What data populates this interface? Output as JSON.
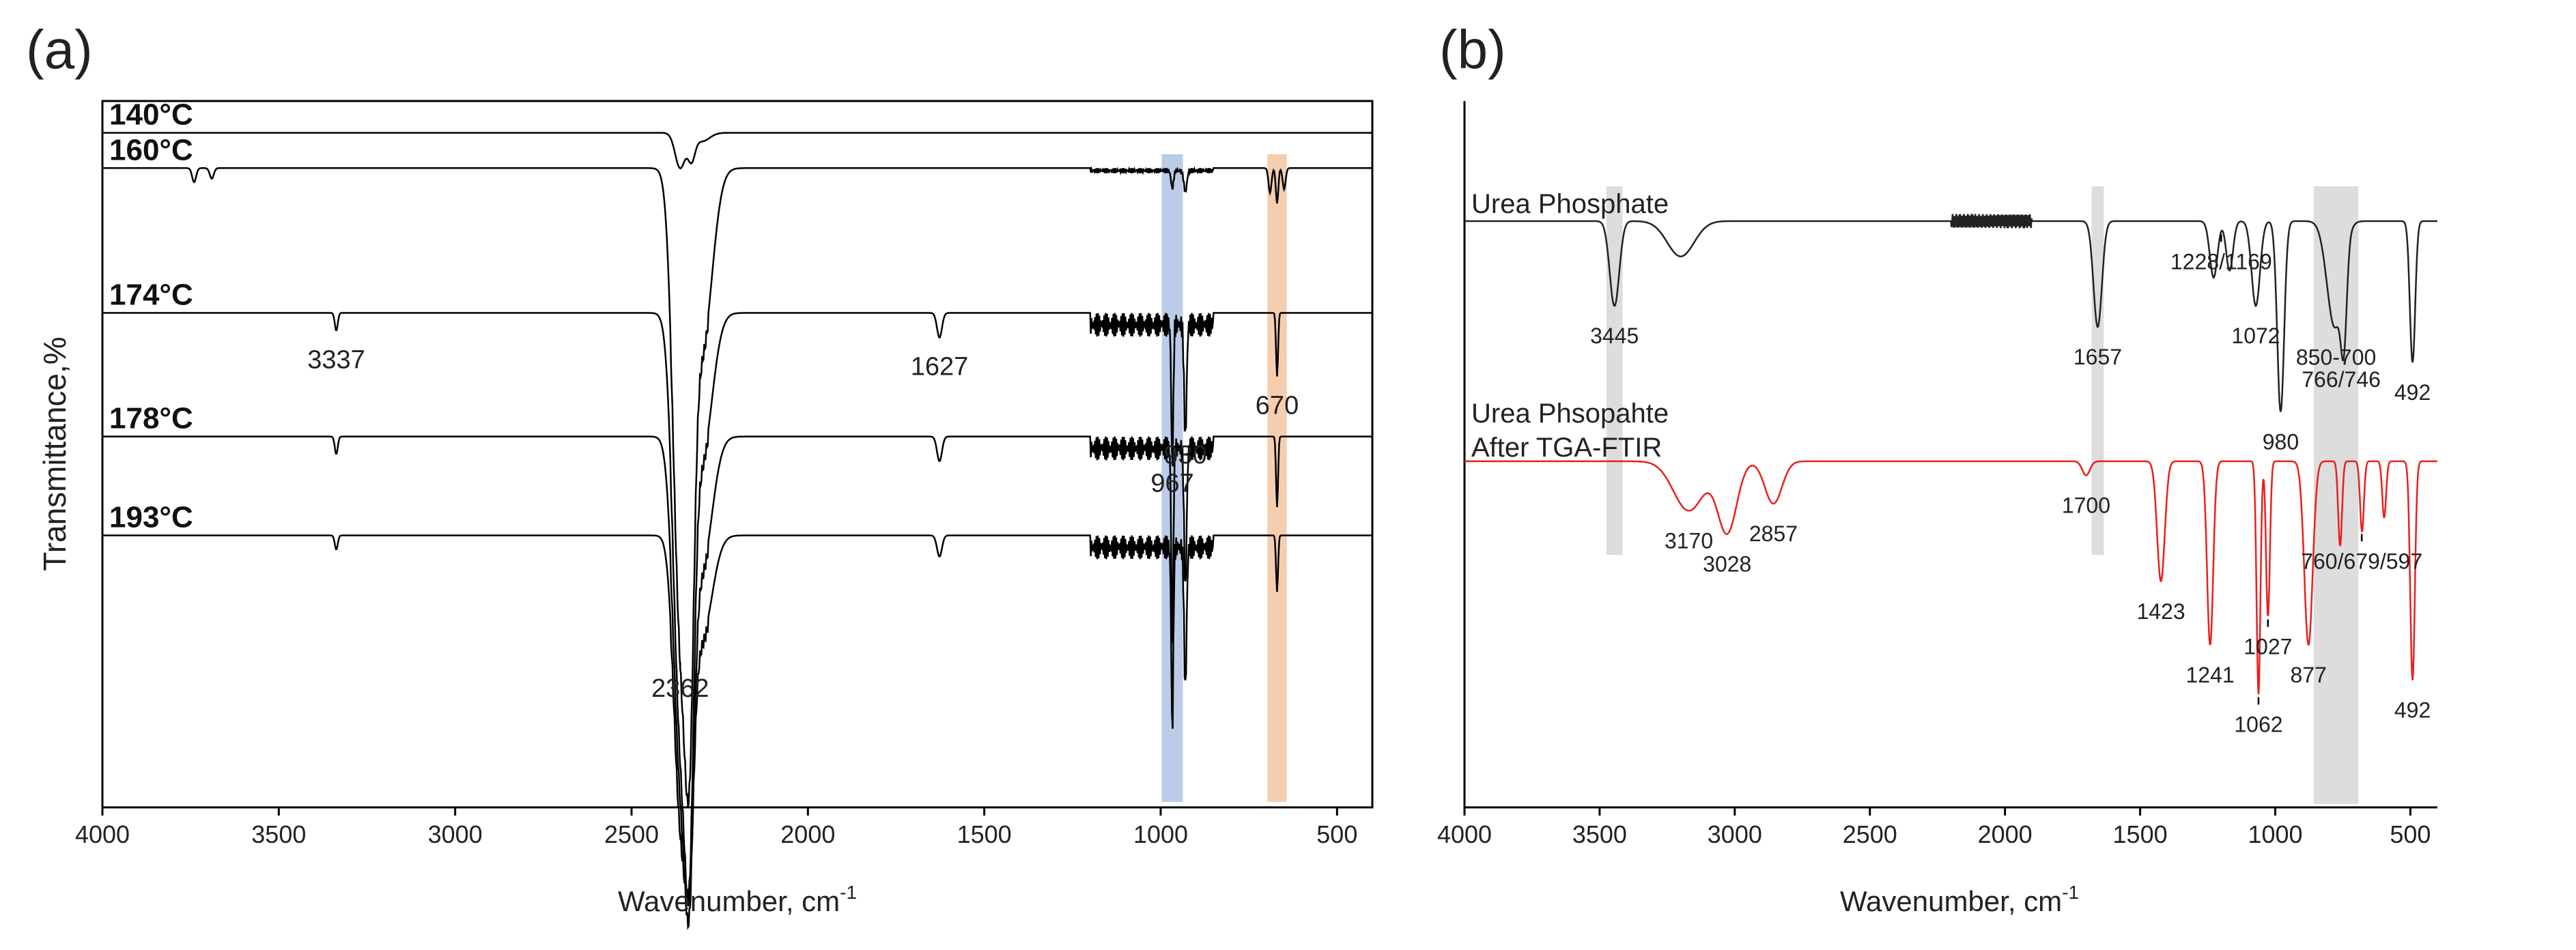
{
  "chart_data": [
    {
      "panel": "(a)",
      "type": "line",
      "xlabel": "Wavenumber, cm",
      "xlabel_superscript": "-1",
      "ylabel": "Transmittance,%",
      "xlim": [
        4000,
        400
      ],
      "xticks": [
        4000,
        3500,
        3000,
        2500,
        2000,
        1500,
        1000,
        500
      ],
      "highlight_bands": [
        {
          "center": 967,
          "width": 60,
          "color": "#b4c6e7"
        },
        {
          "center": 670,
          "width": 55,
          "color": "#f4c9a6"
        }
      ],
      "series": [
        {
          "name": "140°C",
          "baseline": 0.955,
          "color": "#000000",
          "peaks": [
            [
              2362,
              0.05,
              20
            ],
            [
              2330,
              0.035,
              14
            ],
            [
              2300,
              0.012,
              30
            ]
          ]
        },
        {
          "name": "160°C",
          "baseline": 0.905,
          "color": "#000000",
          "peaks": [
            [
              2362,
              0.62,
              28
            ],
            [
              2335,
              0.5,
              18
            ],
            [
              2300,
              0.25,
              40
            ],
            [
              3740,
              0.02,
              8
            ],
            [
              3690,
              0.015,
              8
            ],
            [
              967,
              0.025,
              5
            ],
            [
              930,
              0.03,
              6
            ],
            [
              690,
              0.035,
              6
            ],
            [
              670,
              0.05,
              5
            ],
            [
              650,
              0.03,
              6
            ]
          ]
        },
        {
          "name": "174°C",
          "baseline": 0.7,
          "color": "#000000",
          "peaks": [
            [
              2362,
              0.56,
              28
            ],
            [
              2335,
              0.48,
              18
            ],
            [
              2300,
              0.2,
              40
            ],
            [
              3337,
              0.025,
              6
            ],
            [
              1627,
              0.035,
              10
            ],
            [
              967,
              0.2,
              4
            ],
            [
              930,
              0.16,
              5
            ],
            [
              670,
              0.09,
              4
            ]
          ]
        },
        {
          "name": "178°C",
          "baseline": 0.525,
          "color": "#000000",
          "peaks": [
            [
              2362,
              0.45,
              28
            ],
            [
              2335,
              0.4,
              18
            ],
            [
              2300,
              0.18,
              40
            ],
            [
              3337,
              0.025,
              6
            ],
            [
              1627,
              0.035,
              10
            ],
            [
              967,
              0.28,
              4
            ],
            [
              930,
              0.2,
              5
            ],
            [
              670,
              0.1,
              4
            ]
          ]
        },
        {
          "name": "193°C",
          "baseline": 0.385,
          "color": "#000000",
          "peaks": [
            [
              2362,
              0.37,
              26
            ],
            [
              2335,
              0.3,
              18
            ],
            [
              2300,
              0.14,
              40
            ],
            [
              3337,
              0.02,
              6
            ],
            [
              1627,
              0.03,
              10
            ],
            [
              967,
              0.26,
              4
            ],
            [
              930,
              0.2,
              5
            ],
            [
              670,
              0.08,
              4
            ]
          ]
        }
      ],
      "annotations": [
        {
          "text": "2362",
          "x": 2362,
          "series": 1,
          "arrow": true
        },
        {
          "text": "3337",
          "x": 3337,
          "series": 2
        },
        {
          "text": "1627",
          "x": 1627,
          "series": 2
        },
        {
          "text": "967",
          "x": 967,
          "series": 2
        },
        {
          "text": "930",
          "x": 930,
          "series": 2
        },
        {
          "text": "670",
          "x": 670,
          "series": 2
        }
      ]
    },
    {
      "panel": "(b)",
      "type": "line",
      "xlabel": "Wavenumber, cm",
      "xlabel_superscript": "-1",
      "xlim": [
        4000,
        400
      ],
      "xticks": [
        4000,
        3500,
        3000,
        2500,
        2000,
        1500,
        1000,
        500
      ],
      "highlight_bands": [
        {
          "center": 3445,
          "width": 60,
          "color": "#d9d9d9"
        },
        {
          "center": 1657,
          "width": 45,
          "color": "#d9d9d9"
        },
        {
          "center": 775,
          "width": 165,
          "color": "#d9d9d9"
        }
      ],
      "series": [
        {
          "name": "Urea Phosphate",
          "baseline": 0.83,
          "color": "#222222",
          "peaks": [
            [
              3445,
              0.12,
              25
            ],
            [
              3200,
              0.05,
              70
            ],
            [
              1657,
              0.15,
              22
            ],
            [
              1228,
              0.08,
              20
            ],
            [
              1169,
              0.07,
              18
            ],
            [
              1072,
              0.12,
              22
            ],
            [
              980,
              0.27,
              18
            ],
            [
              780,
              0.15,
              40
            ],
            [
              746,
              0.12,
              15
            ],
            [
              492,
              0.2,
              14
            ]
          ]
        },
        {
          "name": "Urea Phsopahte",
          "name_line2": "After TGA-FTIR",
          "baseline": 0.49,
          "color": "#e8201f",
          "peaks": [
            [
              3170,
              0.07,
              80
            ],
            [
              3028,
              0.1,
              50
            ],
            [
              2857,
              0.06,
              45
            ],
            [
              1700,
              0.02,
              20
            ],
            [
              1423,
              0.17,
              20
            ],
            [
              1241,
              0.26,
              16
            ],
            [
              1062,
              0.33,
              10
            ],
            [
              1027,
              0.22,
              10
            ],
            [
              877,
              0.26,
              22
            ],
            [
              760,
              0.12,
              10
            ],
            [
              679,
              0.1,
              10
            ],
            [
              597,
              0.08,
              10
            ],
            [
              492,
              0.31,
              12
            ]
          ]
        }
      ],
      "annotations": [
        {
          "text": "3445",
          "x": 3445,
          "series": 0
        },
        {
          "text": "1657",
          "x": 1657,
          "series": 0
        },
        {
          "text": "1228/1169",
          "x": 1200,
          "series": 0,
          "arrow": true
        },
        {
          "text": "1072",
          "x": 1072,
          "series": 0
        },
        {
          "text": "850-700",
          "x": 775,
          "series": 0
        },
        {
          "text": "980",
          "x": 980,
          "series": 0
        },
        {
          "text": "766/746",
          "x": 756,
          "series": 0
        },
        {
          "text": "492",
          "x": 492,
          "series": 0
        },
        {
          "text": "3170",
          "x": 3170,
          "series": 1
        },
        {
          "text": "3028",
          "x": 3028,
          "series": 1
        },
        {
          "text": "2857",
          "x": 2857,
          "series": 1
        },
        {
          "text": "1700",
          "x": 1700,
          "series": 1
        },
        {
          "text": "1423",
          "x": 1423,
          "series": 1
        },
        {
          "text": "1241",
          "x": 1241,
          "series": 1
        },
        {
          "text": "1062",
          "x": 1062,
          "series": 1,
          "arrow": true
        },
        {
          "text": "1027",
          "x": 1027,
          "series": 1,
          "arrow": true
        },
        {
          "text": "877",
          "x": 877,
          "series": 1
        },
        {
          "text": "760/679/597",
          "x": 680,
          "series": 1,
          "arrow": true
        },
        {
          "text": "492",
          "x": 492,
          "series": 1
        }
      ]
    }
  ]
}
